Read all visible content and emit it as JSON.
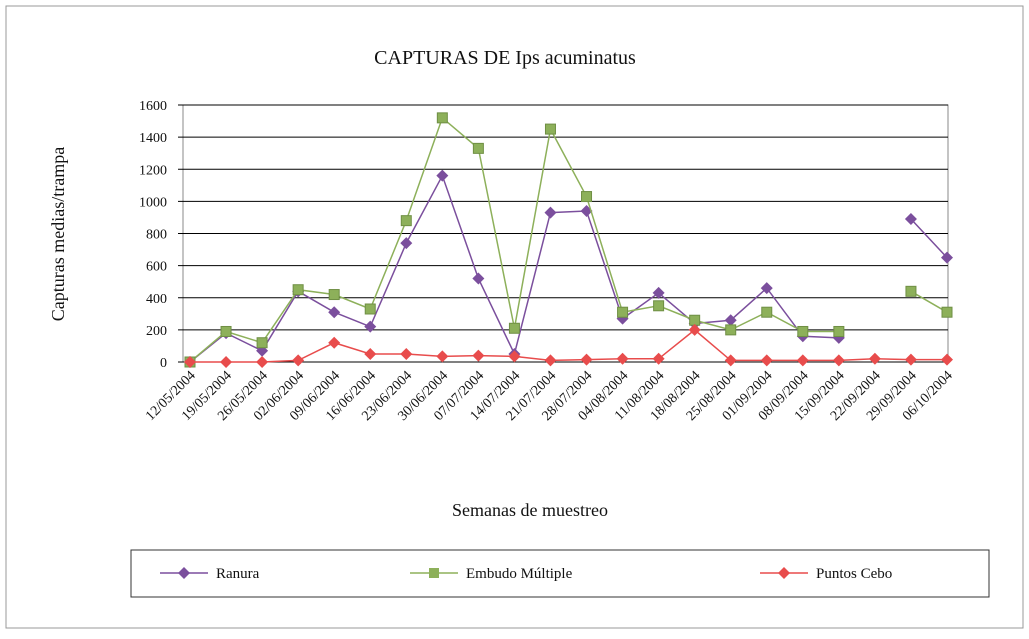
{
  "chart_data": {
    "type": "line",
    "title": "CAPTURAS DE Ips acuminatus",
    "x_label": "Semanas de muestreo",
    "y_label": "Capturas medias/trampa",
    "categories": [
      "12/05/2004",
      "19/05/2004",
      "26/05/2004",
      "02/06/2004",
      "09/06/2004",
      "16/06/2004",
      "23/06/2004",
      "30/06/2004",
      "07/07/2004",
      "14/07/2004",
      "21/07/2004",
      "28/07/2004",
      "04/08/2004",
      "11/08/2004",
      "18/08/2004",
      "25/08/2004",
      "01/09/2004",
      "08/09/2004",
      "15/09/2004",
      "22/09/2004",
      "29/09/2004",
      "06/10/2004"
    ],
    "series": [
      {
        "name": "Ranura",
        "color": "#7b4f9d",
        "marker": "diamond",
        "values": [
          0,
          180,
          70,
          440,
          310,
          220,
          740,
          1160,
          520,
          50,
          930,
          940,
          270,
          430,
          240,
          260,
          460,
          160,
          150,
          null,
          890,
          650
        ]
      },
      {
        "name": "Embudo Múltiple",
        "color": "#8db05a",
        "marker": "square",
        "values": [
          0,
          190,
          120,
          450,
          420,
          330,
          880,
          1520,
          1330,
          210,
          1450,
          1030,
          310,
          350,
          260,
          200,
          310,
          190,
          190,
          null,
          440,
          310
        ]
      },
      {
        "name": "Puntos Cebo",
        "color": "#e84c4c",
        "marker": "diamond",
        "values": [
          0,
          0,
          0,
          10,
          120,
          50,
          50,
          35,
          40,
          35,
          10,
          15,
          20,
          20,
          200,
          10,
          10,
          10,
          10,
          20,
          15,
          15
        ]
      }
    ],
    "ylim": [
      0,
      1600
    ],
    "yticks": [
      0,
      200,
      400,
      600,
      800,
      1000,
      1200,
      1400,
      1600
    ],
    "grid": true
  }
}
